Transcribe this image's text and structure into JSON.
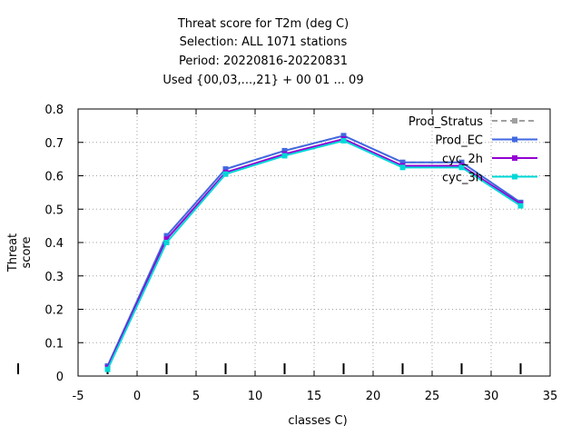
{
  "chart_data": {
    "type": "line",
    "title_lines": [
      "Threat score  for T2m (deg C)",
      "Selection: ALL    1071 stations",
      "Period: 20220816-20220831",
      "Used {00,03,...,21} + 00 01 ... 09"
    ],
    "xlabel": "classes C)",
    "ylabel": "Threat score",
    "xlim": [
      -5,
      35
    ],
    "ylim": [
      0,
      0.8
    ],
    "xticks": [
      "-5",
      "0",
      "5",
      "10",
      "15",
      "20",
      "25",
      "30",
      "35"
    ],
    "yticks": [
      "0",
      "0.1",
      "0.2",
      "0.3",
      "0.4",
      "0.5",
      "0.6",
      "0.7",
      "0.8"
    ],
    "grid": true,
    "legend_position": "top-right",
    "x": [
      -2.5,
      2.5,
      7.5,
      12.5,
      17.5,
      22.5,
      27.5,
      32.5
    ],
    "series": [
      {
        "name": "Prod_Stratus",
        "color": "#a0a0a0",
        "dashed": true,
        "values": [
          0.03,
          0.42,
          0.62,
          0.675,
          0.72,
          0.64,
          0.64,
          0.52
        ]
      },
      {
        "name": "Prod_EC",
        "color": "#4169e1",
        "dashed": false,
        "values": [
          0.03,
          0.42,
          0.62,
          0.675,
          0.72,
          0.64,
          0.64,
          0.52
        ]
      },
      {
        "name": "cyc_2h",
        "color": "#9400d3",
        "dashed": false,
        "values": [
          0.025,
          0.41,
          0.61,
          0.665,
          0.71,
          0.63,
          0.63,
          0.515
        ]
      },
      {
        "name": "cyc_3h",
        "color": "#00d8d8",
        "dashed": false,
        "values": [
          0.02,
          0.4,
          0.605,
          0.66,
          0.705,
          0.625,
          0.625,
          0.51
        ]
      }
    ]
  }
}
